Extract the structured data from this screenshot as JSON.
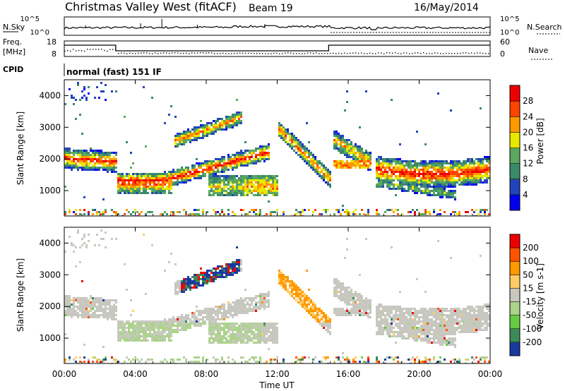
{
  "header": {
    "station": "Christmas Valley West (fitACF)",
    "beam": "Beam 19",
    "date": "16/May/2014"
  },
  "top_panels": {
    "nsky_label": "N.Sky",
    "nsky_ticks": [
      "10^5",
      "10^0"
    ],
    "nsearch_label": "N.Search",
    "nsearch_ticks": [
      "10^5",
      "10^0"
    ],
    "freq_label": "Freq.",
    "freq_unit": "[MHz]",
    "freq_ticks": [
      "18",
      "8"
    ],
    "nave_label": "Nave",
    "nave_ticks": [
      "60",
      "0"
    ],
    "cpid_label": "CPID",
    "cpid_value": "normal (fast) 151 IF"
  },
  "chart_data": [
    {
      "type": "heatmap",
      "name": "power",
      "ylabel": "Slant Range [km]",
      "ylim": [
        200,
        4500
      ],
      "yticks": [
        "1000",
        "2000",
        "3000",
        "4000"
      ],
      "colorbar_label": "Power [dB]",
      "colorbar_ticks": [
        "4",
        "8",
        "12",
        "16",
        "20",
        "24",
        "28"
      ],
      "colorbar_colors": [
        "#0000ee",
        "#2244bb",
        "#3a8a6a",
        "#5aa860",
        "#e8e800",
        "#ff9900",
        "#ff4400",
        "#ee0000"
      ],
      "colorbar_range": [
        0,
        32
      ]
    },
    {
      "type": "heatmap",
      "name": "velocity",
      "ylabel": "Slant Range [km]",
      "ylim": [
        200,
        4500
      ],
      "yticks": [
        "1000",
        "2000",
        "3000",
        "4000"
      ],
      "colorbar_label": "Velocity [m s-1]",
      "colorbar_ticks": [
        "200",
        "100",
        "50",
        "15",
        "-15",
        "-50",
        "-100",
        "-200"
      ],
      "colorbar_colors": [
        "#1a3aa0",
        "#3a8a5a",
        "#66cc44",
        "#aad488",
        "#c8c8c0",
        "#ffcc66",
        "#ff9900",
        "#ff5500",
        "#ee0000"
      ]
    }
  ],
  "x_axis": {
    "label": "Time UT",
    "ticks": [
      "00:00",
      "04:00",
      "08:00",
      "12:00",
      "16:00",
      "20:00",
      "00:00"
    ]
  }
}
